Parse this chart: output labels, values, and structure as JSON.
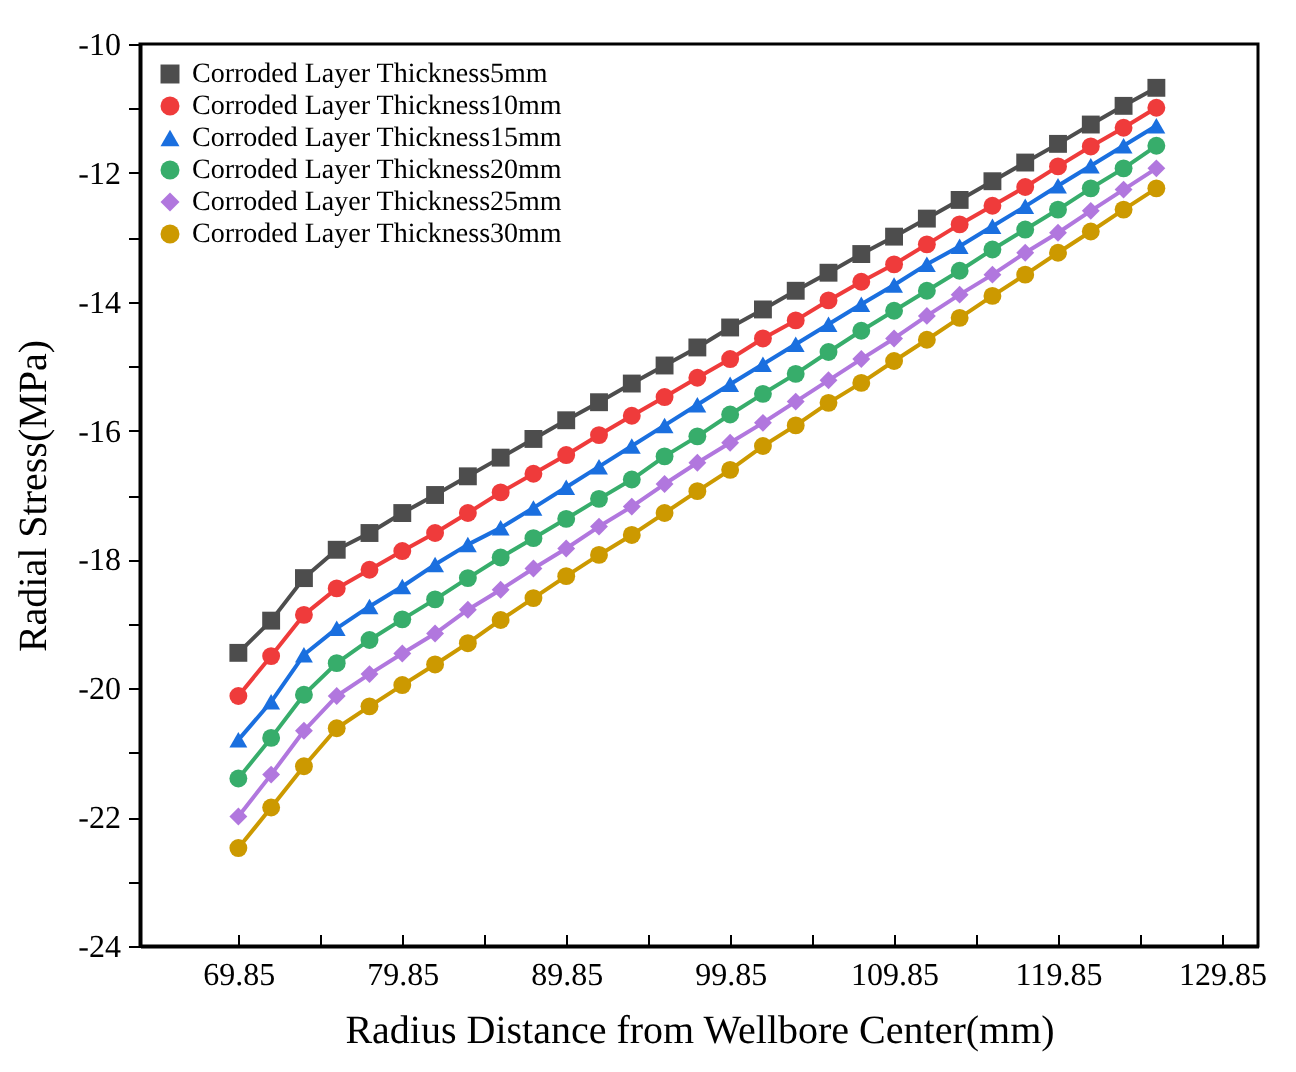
{
  "chart_data": {
    "type": "line",
    "xlabel": "Radius  Distance from Wellbore Center(mm)",
    "ylabel": "Radial Stress(MPa)",
    "x": [
      69.85,
      71.85,
      73.85,
      75.85,
      77.85,
      79.85,
      81.85,
      83.85,
      85.85,
      87.85,
      89.85,
      91.85,
      93.85,
      95.85,
      97.85,
      99.85,
      101.85,
      103.85,
      105.85,
      107.85,
      109.85,
      111.85,
      113.85,
      115.85,
      117.85,
      119.85,
      121.85,
      123.85,
      125.85
    ],
    "xlim": [
      63.85,
      132.05
    ],
    "xticks": [
      69.85,
      {
        "value": 74.85,
        "label": null
      },
      79.85,
      {
        "value": 84.85,
        "label": null
      },
      89.85,
      {
        "value": 94.85,
        "label": null
      },
      99.85,
      {
        "value": 104.85,
        "label": null
      },
      109.85,
      {
        "value": 114.85,
        "label": null
      },
      119.85,
      {
        "value": 124.85,
        "label": null
      },
      129.85
    ],
    "ylim": [
      -24,
      -10
    ],
    "yticks": [
      -24,
      {
        "value": -23,
        "label": null
      },
      -22,
      {
        "value": -21,
        "label": null
      },
      -20,
      {
        "value": -19,
        "label": null
      },
      -18,
      {
        "value": -17,
        "label": null
      },
      -16,
      {
        "value": -15,
        "label": null
      },
      -14,
      {
        "value": -13,
        "label": null
      },
      -12,
      {
        "value": -11,
        "label": null
      },
      -10
    ],
    "legend": "top left",
    "grid": false,
    "series": [
      {
        "name": "Corroded Layer Thickness5mm",
        "color": "#4d4d4d",
        "marker": "square",
        "values": [
          -19.45,
          -18.95,
          -18.29,
          -17.85,
          -17.59,
          -17.28,
          -17.0,
          -16.71,
          -16.42,
          -16.13,
          -15.84,
          -15.56,
          -15.27,
          -14.99,
          -14.71,
          -14.4,
          -14.12,
          -13.83,
          -13.55,
          -13.26,
          -12.99,
          -12.71,
          -12.42,
          -12.13,
          -11.84,
          -11.55,
          -11.25,
          -10.96,
          -10.68
        ]
      },
      {
        "name": "Corroded Layer Thickness10mm",
        "color": "#ef3b3b",
        "marker": "circle",
        "values": [
          -20.12,
          -19.5,
          -18.86,
          -18.45,
          -18.16,
          -17.87,
          -17.59,
          -17.28,
          -16.96,
          -16.67,
          -16.38,
          -16.07,
          -15.77,
          -15.48,
          -15.18,
          -14.89,
          -14.57,
          -14.29,
          -13.98,
          -13.69,
          -13.42,
          -13.11,
          -12.8,
          -12.51,
          -12.22,
          -11.9,
          -11.59,
          -11.3,
          -10.99
        ]
      },
      {
        "name": "Corroded Layer Thickness15mm",
        "color": "#1a6fdf",
        "marker": "triangle",
        "values": [
          -20.8,
          -20.21,
          -19.48,
          -19.07,
          -18.73,
          -18.42,
          -18.08,
          -17.77,
          -17.51,
          -17.2,
          -16.88,
          -16.56,
          -16.24,
          -15.92,
          -15.6,
          -15.28,
          -14.97,
          -14.66,
          -14.35,
          -14.04,
          -13.74,
          -13.42,
          -13.14,
          -12.83,
          -12.52,
          -12.2,
          -11.89,
          -11.58,
          -11.27
        ]
      },
      {
        "name": "Corroded Layer Thickness20mm",
        "color": "#37ad6b",
        "marker": "circle",
        "values": [
          -21.4,
          -20.77,
          -20.1,
          -19.61,
          -19.25,
          -18.93,
          -18.62,
          -18.29,
          -17.97,
          -17.67,
          -17.37,
          -17.06,
          -16.76,
          -16.4,
          -16.09,
          -15.75,
          -15.43,
          -15.12,
          -14.78,
          -14.45,
          -14.14,
          -13.83,
          -13.52,
          -13.19,
          -12.88,
          -12.57,
          -12.24,
          -11.93,
          -11.58
        ]
      },
      {
        "name": "Corroded Layer Thickness25mm",
        "color": "#b177de",
        "marker": "diamond",
        "values": [
          -21.99,
          -21.34,
          -20.66,
          -20.12,
          -19.78,
          -19.46,
          -19.15,
          -18.78,
          -18.47,
          -18.14,
          -17.83,
          -17.49,
          -17.18,
          -16.83,
          -16.5,
          -16.19,
          -15.88,
          -15.55,
          -15.22,
          -14.89,
          -14.57,
          -14.22,
          -13.89,
          -13.58,
          -13.24,
          -12.93,
          -12.59,
          -12.26,
          -11.93
        ]
      },
      {
        "name": "Corroded Layer Thickness30mm",
        "color": "#cc9900",
        "marker": "circle",
        "values": [
          -22.48,
          -21.85,
          -21.21,
          -20.62,
          -20.28,
          -19.95,
          -19.63,
          -19.3,
          -18.94,
          -18.6,
          -18.26,
          -17.93,
          -17.62,
          -17.28,
          -16.94,
          -16.61,
          -16.24,
          -15.92,
          -15.57,
          -15.26,
          -14.92,
          -14.59,
          -14.25,
          -13.91,
          -13.58,
          -13.24,
          -12.91,
          -12.57,
          -12.24
        ]
      }
    ]
  }
}
